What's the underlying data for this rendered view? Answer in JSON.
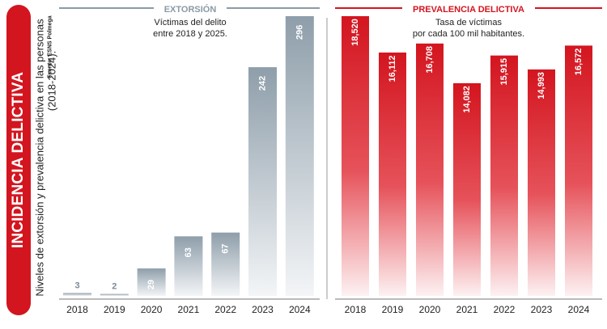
{
  "side": {
    "title": "INCIDENCIA DELICTIVA",
    "subtitle_line1": "Niveles de extorsión y prevalencia delictiva en las personas",
    "subtitle_line2": "(2018-2024).",
    "source": "Fuente: ESNS Polmega"
  },
  "colors": {
    "accent_red": "#d3151f",
    "extorsion_gray": "#8e9eaa",
    "extorsion_title": "#8a9aa6"
  },
  "chart_data": [
    {
      "type": "bar",
      "title": "EXTORSIÓN",
      "subtitle": [
        "Víctimas del delito",
        "entre 2018 y 2025."
      ],
      "categories": [
        "2018",
        "2019",
        "2020",
        "2021",
        "2022",
        "2023",
        "2024"
      ],
      "values": [
        3,
        2,
        29,
        63,
        67,
        242,
        296
      ],
      "labels": [
        "3",
        "2",
        "29",
        "63",
        "67",
        "242",
        "296"
      ],
      "ylim": [
        0,
        296
      ],
      "xlabel": "",
      "ylabel": ""
    },
    {
      "type": "bar",
      "title": "PREVALENCIA DELICTIVA",
      "subtitle": [
        "Tasa de víctimas",
        "por cada 100 mil habitantes."
      ],
      "categories": [
        "2018",
        "2019",
        "2020",
        "2021",
        "2022",
        "2023",
        "2024"
      ],
      "values": [
        18520,
        16112,
        16708,
        14082,
        15915,
        14993,
        16572
      ],
      "labels": [
        "18,520",
        "16,112",
        "16,708",
        "14,082",
        "15,915",
        "14,993",
        "16,572"
      ],
      "ylim": [
        0,
        18520
      ],
      "xlabel": "",
      "ylabel": ""
    }
  ]
}
